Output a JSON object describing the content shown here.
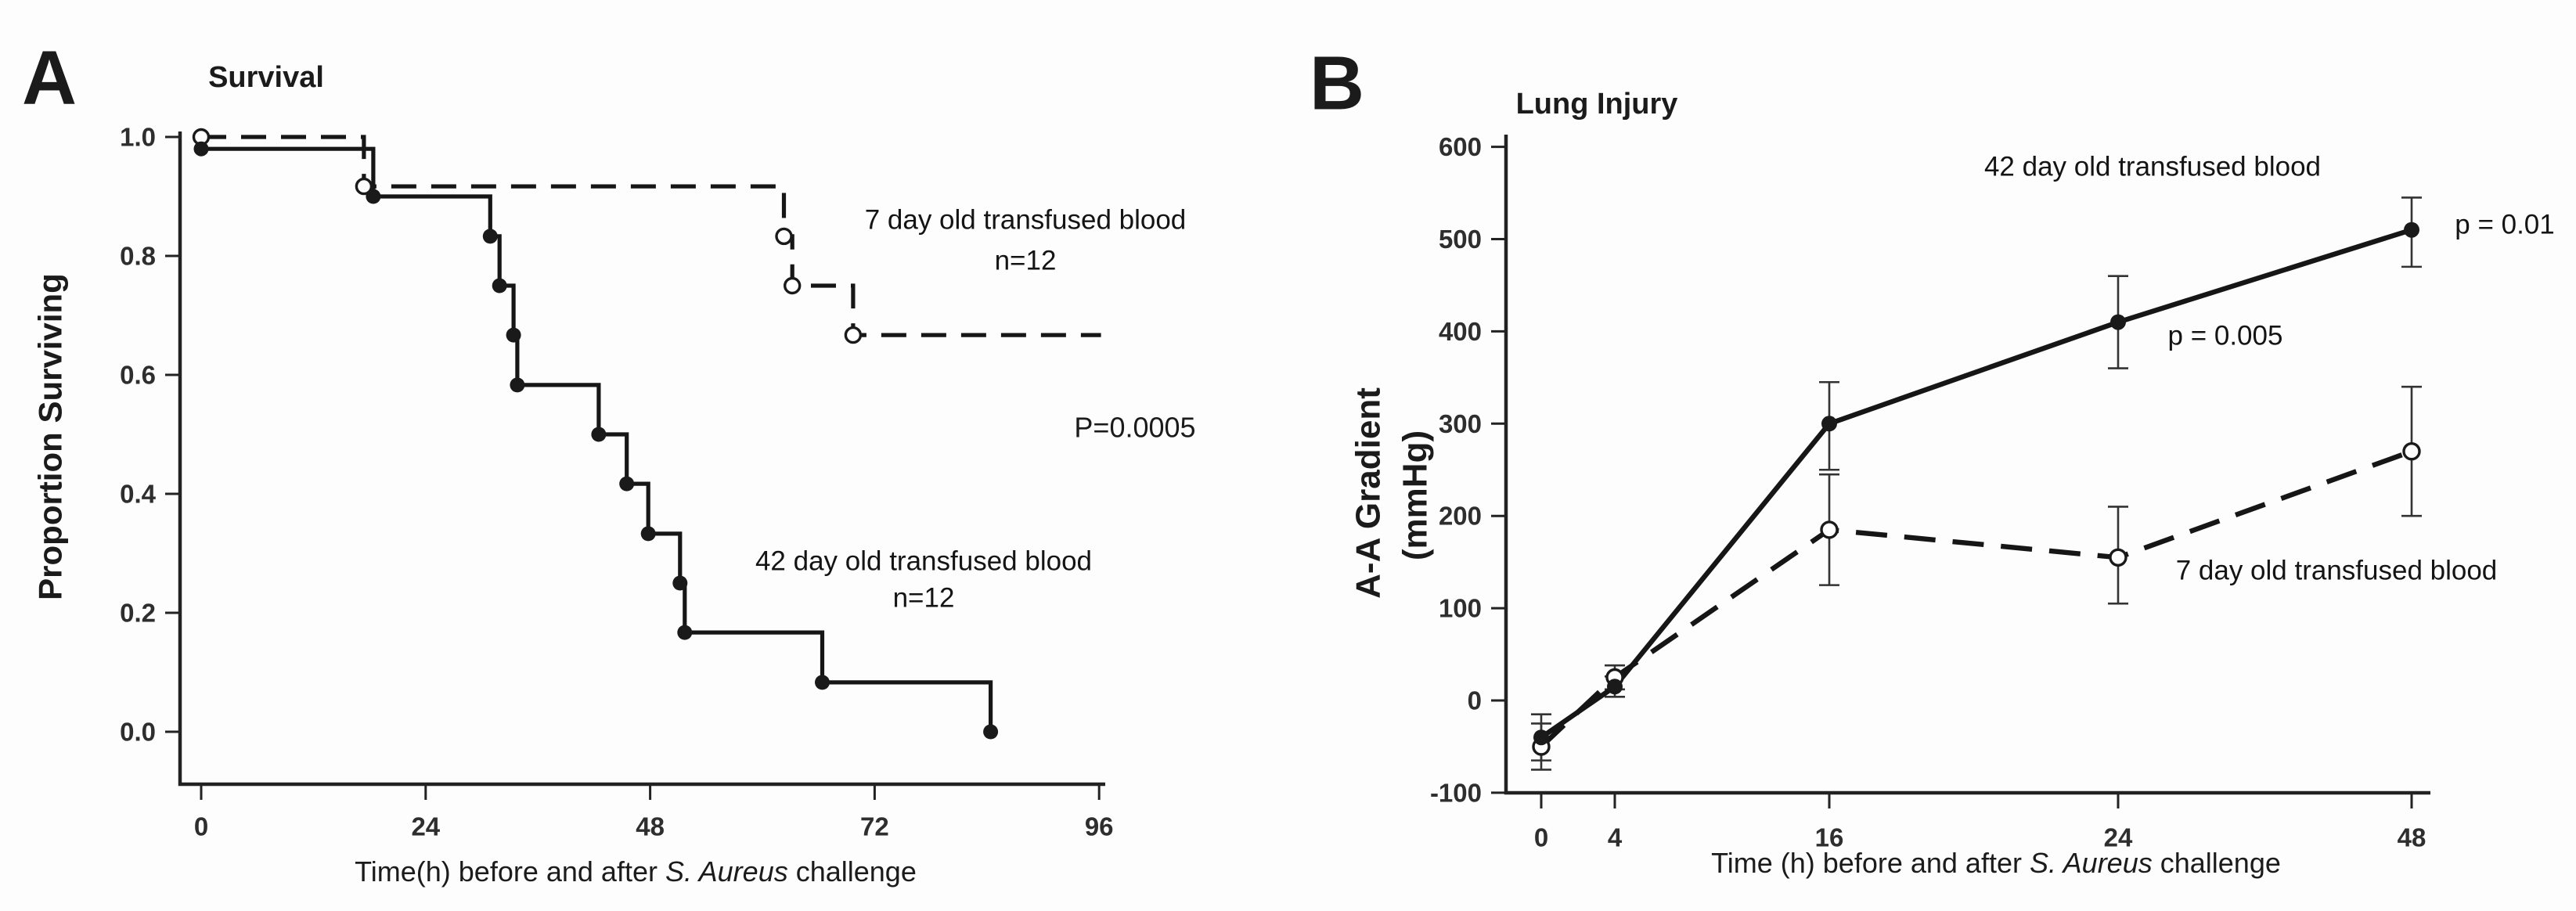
{
  "page": {
    "background": "#fdfdfd",
    "ink": "#1a1a1a"
  },
  "chart_data": [
    {
      "panel": "A",
      "type": "line",
      "subtype": "kaplan-meier-step",
      "title": "Survival",
      "ylabel": "Proportion Surviving",
      "xlabel": {
        "prefix": "Time(h) before and after ",
        "italic": "S. Aureus",
        "suffix": " challenge"
      },
      "pvalue_label": "P=0.0005",
      "xlim": [
        0,
        96
      ],
      "ylim": [
        0.0,
        1.0
      ],
      "grid": false,
      "xticks": [
        {
          "label": "0",
          "value": 0
        },
        {
          "label": "24",
          "value": 24
        },
        {
          "label": "48",
          "value": 48
        },
        {
          "label": "72",
          "value": 72
        },
        {
          "label": "96",
          "value": 96
        }
      ],
      "yticks": [
        {
          "label": "1.0",
          "value": 1.0
        },
        {
          "label": "0.8",
          "value": 0.8
        },
        {
          "label": "0.6",
          "value": 0.6
        },
        {
          "label": "0.4",
          "value": 0.4
        },
        {
          "label": "0.2",
          "value": 0.2
        },
        {
          "label": "0.0",
          "value": 0.0
        }
      ],
      "series": [
        {
          "name": "7 day old transfused blood",
          "n_label": "n=12",
          "line": "dashed",
          "marker": "open-circle",
          "step_vertices": [
            [
              0,
              1.0
            ],
            [
              17.4,
              1.0
            ],
            [
              17.4,
              0.917
            ],
            [
              62.3,
              0.917
            ],
            [
              62.3,
              0.833
            ],
            [
              63.2,
              0.833
            ],
            [
              63.2,
              0.75
            ],
            [
              69.7,
              0.75
            ],
            [
              69.7,
              0.667
            ],
            [
              96.2,
              0.667
            ]
          ],
          "marker_points": [
            [
              0,
              1.0
            ],
            [
              17.4,
              0.917
            ],
            [
              62.3,
              0.833
            ],
            [
              63.2,
              0.75
            ],
            [
              69.7,
              0.667
            ]
          ]
        },
        {
          "name": "42 day old transfused blood",
          "n_label": "n=12",
          "line": "solid",
          "marker": "filled-circle",
          "step_vertices": [
            [
              0,
              0.98
            ],
            [
              18.4,
              0.98
            ],
            [
              18.4,
              0.9
            ],
            [
              30.9,
              0.9
            ],
            [
              30.9,
              0.833
            ],
            [
              31.9,
              0.833
            ],
            [
              31.9,
              0.75
            ],
            [
              33.4,
              0.75
            ],
            [
              33.4,
              0.667
            ],
            [
              33.8,
              0.667
            ],
            [
              33.8,
              0.583
            ],
            [
              42.5,
              0.583
            ],
            [
              42.5,
              0.5
            ],
            [
              45.5,
              0.5
            ],
            [
              45.5,
              0.417
            ],
            [
              47.8,
              0.417
            ],
            [
              47.8,
              0.333
            ],
            [
              51.2,
              0.333
            ],
            [
              51.2,
              0.25
            ],
            [
              51.7,
              0.25
            ],
            [
              51.7,
              0.167
            ],
            [
              66.4,
              0.167
            ],
            [
              66.4,
              0.083
            ],
            [
              84.4,
              0.083
            ],
            [
              84.4,
              0.0
            ]
          ],
          "marker_points": [
            [
              0,
              0.98
            ],
            [
              18.4,
              0.9
            ],
            [
              30.9,
              0.833
            ],
            [
              31.9,
              0.75
            ],
            [
              33.4,
              0.667
            ],
            [
              33.8,
              0.583
            ],
            [
              42.5,
              0.5
            ],
            [
              45.5,
              0.417
            ],
            [
              47.8,
              0.333
            ],
            [
              51.2,
              0.25
            ],
            [
              51.7,
              0.167
            ],
            [
              66.4,
              0.083
            ],
            [
              84.4,
              0.0
            ]
          ]
        }
      ]
    },
    {
      "panel": "B",
      "type": "line",
      "subtype": "line-with-error-bars",
      "title": "Lung Injury",
      "ylabel_line1": "A-A Gradient",
      "ylabel_line2": "(mmHg)",
      "xlabel": {
        "prefix": "Time (h) before and after ",
        "italic": "S. Aureus",
        "suffix": " challenge"
      },
      "xlim": [
        0,
        48
      ],
      "ylim": [
        -100,
        600
      ],
      "grid": false,
      "xticks": [
        {
          "label": "0",
          "value": 0,
          "px": 1969
        },
        {
          "label": "4",
          "value": 4,
          "px": 2063
        },
        {
          "label": "16",
          "value": 16,
          "px": 2337
        },
        {
          "label": "24",
          "value": 24,
          "px": 2706
        },
        {
          "label": "48",
          "value": 48,
          "px": 3081
        }
      ],
      "yticks": [
        {
          "label": "600",
          "value": 600
        },
        {
          "label": "500",
          "value": 500
        },
        {
          "label": "400",
          "value": 400
        },
        {
          "label": "300",
          "value": 300
        },
        {
          "label": "200",
          "value": 200
        },
        {
          "label": "100",
          "value": 100
        },
        {
          "label": "0",
          "value": 0
        },
        {
          "label": "-100",
          "value": -100
        }
      ],
      "p_label_mid": "p = 0.005",
      "p_label_end": "p = 0.01",
      "series": [
        {
          "name": "7 day old transfused blood",
          "line": "dashed",
          "marker": "open-circle",
          "points": [
            {
              "x": 0,
              "y": -50,
              "lo": -75,
              "hi": -25
            },
            {
              "x": 4,
              "y": 25,
              "lo": 12,
              "hi": 38
            },
            {
              "x": 16,
              "y": 185,
              "lo": 125,
              "hi": 245
            },
            {
              "x": 24,
              "y": 155,
              "lo": 105,
              "hi": 210
            },
            {
              "x": 48,
              "y": 270,
              "lo": 200,
              "hi": 340
            }
          ]
        },
        {
          "name": "42 day old transfused blood",
          "line": "solid",
          "marker": "filled-circle",
          "points": [
            {
              "x": 0,
              "y": -40,
              "lo": -65,
              "hi": -15
            },
            {
              "x": 4,
              "y": 15,
              "lo": 4,
              "hi": 26
            },
            {
              "x": 16,
              "y": 300,
              "lo": 250,
              "hi": 345
            },
            {
              "x": 24,
              "y": 410,
              "lo": 360,
              "hi": 460
            },
            {
              "x": 48,
              "y": 510,
              "lo": 470,
              "hi": 545
            }
          ]
        }
      ]
    }
  ]
}
